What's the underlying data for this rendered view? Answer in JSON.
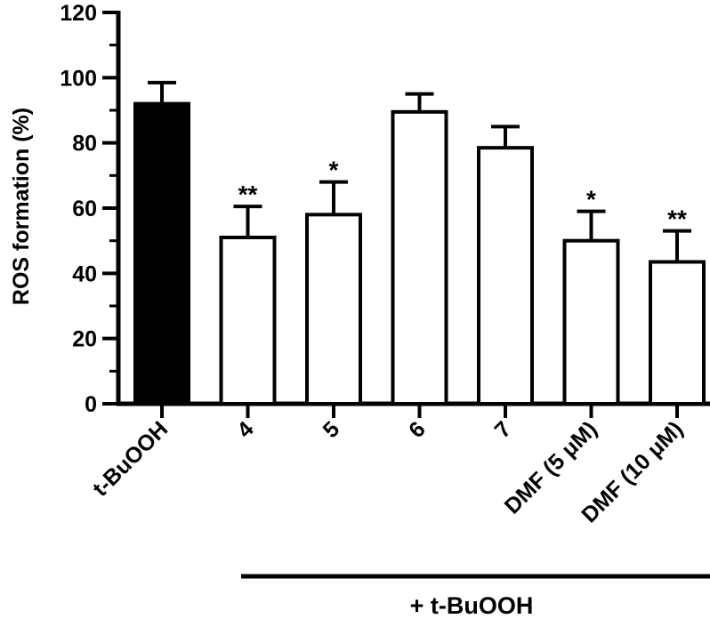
{
  "chart_data": {
    "type": "bar",
    "title": "",
    "ylabel": "ROS formation (%)",
    "ylim": [
      0,
      120
    ],
    "yticks": [
      0,
      20,
      40,
      60,
      80,
      100,
      120
    ],
    "grid": false,
    "legend": "none",
    "categories": [
      "t-BuOOH",
      "4",
      "5",
      "6",
      "7",
      "DMF (5 μM)",
      "DMF (10 μM)"
    ],
    "values": [
      92,
      51,
      58,
      89.5,
      78.5,
      50,
      43.5
    ],
    "errors": [
      6.5,
      9.5,
      10,
      5.5,
      6.5,
      9,
      9.5
    ],
    "annotations": [
      "",
      "**",
      "*",
      "",
      "",
      "*",
      "**"
    ],
    "fills": [
      "#000000",
      "#ffffff",
      "#ffffff",
      "#ffffff",
      "#ffffff",
      "#ffffff",
      "#ffffff"
    ],
    "group_label": "+ t-BuOOH",
    "group_span": [
      1,
      6
    ]
  }
}
